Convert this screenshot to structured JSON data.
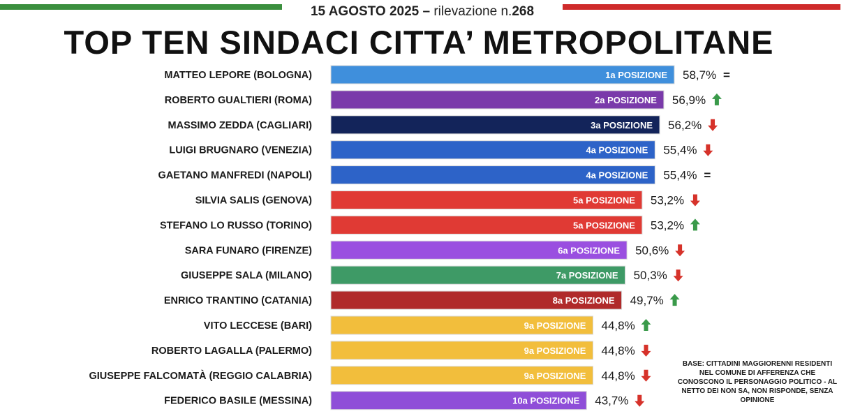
{
  "header": {
    "date": "15 AGOSTO 2025",
    "dash": " – ",
    "survey_label": "rilevazione n.",
    "survey_number": "268",
    "title": "TOP TEN SINDACI CITTA’ METROPOLITANE"
  },
  "colors": {
    "flag_green": "#3b8f3e",
    "flag_red": "#cf2b2b",
    "trend_up": "#3a9a4a",
    "trend_down": "#d6322a"
  },
  "note": "BASE: CITTADINI MAGGIORENNI RESIDENTI NEL COMUNE DI AFFERENZA CHE CONOSCONO IL PERSONAGGIO POLITICO - AL NETTO DEI NON SA, NON RISPONDE, SENZA OPINIONE",
  "chart_data": {
    "type": "bar",
    "orientation": "horizontal",
    "categories": [
      "MATTEO LEPORE (BOLOGNA)",
      "ROBERTO GUALTIERI (ROMA)",
      "MASSIMO ZEDDA (CAGLIARI)",
      "LUIGI BRUGNARO (VENEZIA)",
      "GAETANO MANFREDI (NAPOLI)",
      "SILVIA SALIS (GENOVA)",
      "STEFANO LO RUSSO (TORINO)",
      "SARA FUNARO (FIRENZE)",
      "GIUSEPPE SALA (MILANO)",
      "ENRICO TRANTINO (CATANIA)",
      "VITO LECCESE (BARI)",
      "ROBERTO LAGALLA (PALERMO)",
      "GIUSEPPE FALCOMATÀ (REGGIO CALABRIA)",
      "FEDERICO BASILE (MESSINA)"
    ],
    "values": [
      58.7,
      56.9,
      56.2,
      55.4,
      55.4,
      53.2,
      53.2,
      50.6,
      50.3,
      49.7,
      44.8,
      44.8,
      44.8,
      43.7
    ],
    "value_labels": [
      "58,7%",
      "56,9%",
      "56,2%",
      "55,4%",
      "55,4%",
      "53,2%",
      "53,2%",
      "50,6%",
      "50,3%",
      "49,7%",
      "44,8%",
      "44,8%",
      "44,8%",
      "43,7%"
    ],
    "position_labels": [
      "1a POSIZIONE",
      "2a POSIZIONE",
      "3a POSIZIONE",
      "4a POSIZIONE",
      "4a POSIZIONE",
      "5a POSIZIONE",
      "5a POSIZIONE",
      "6a POSIZIONE",
      "7a POSIZIONE",
      "8a POSIZIONE",
      "9a POSIZIONE",
      "9a POSIZIONE",
      "9a POSIZIONE",
      "10a POSIZIONE"
    ],
    "trends": [
      "equal",
      "up",
      "down",
      "down",
      "equal",
      "down",
      "up",
      "down",
      "down",
      "up",
      "up",
      "down",
      "down",
      "down"
    ],
    "bar_colors": [
      "#3f8fdc",
      "#7a3aaa",
      "#13245a",
      "#2d63c8",
      "#2d63c8",
      "#e03a34",
      "#e03a34",
      "#9a4fe0",
      "#3e9a66",
      "#b02a2a",
      "#f2be3c",
      "#f2be3c",
      "#f2be3c",
      "#8f4ed8"
    ],
    "xlim": [
      0,
      58.7
    ],
    "title": "TOP TEN SINDACI CITTA’ METROPOLITANE"
  }
}
